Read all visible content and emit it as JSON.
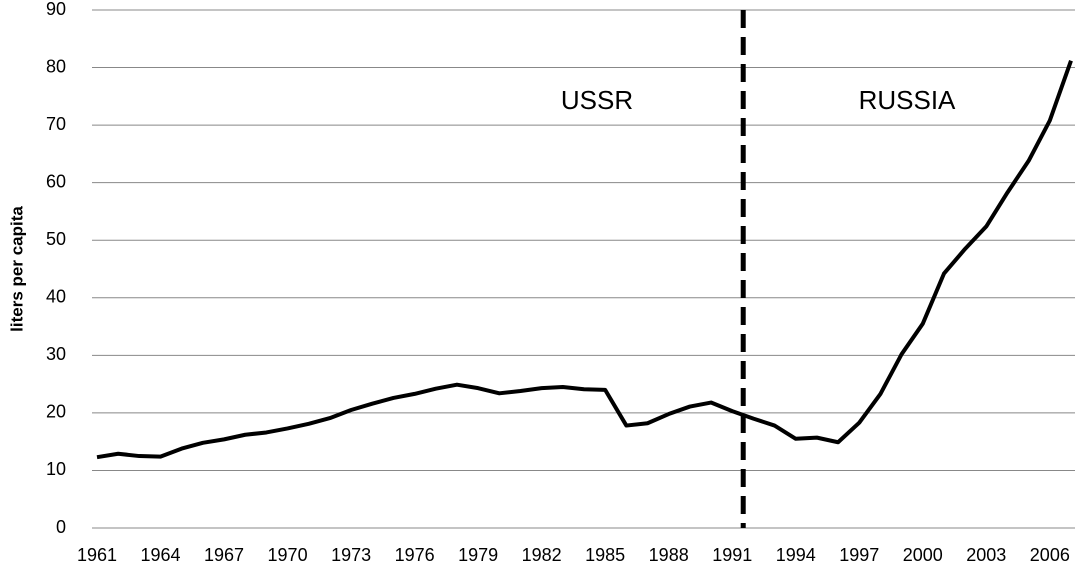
{
  "chart_data": {
    "type": "line",
    "y_label": "liters per capita",
    "categories": [
      "1961",
      null,
      null,
      "1964",
      null,
      null,
      "1967",
      null,
      null,
      "1970",
      null,
      null,
      "1973",
      null,
      null,
      "1976",
      null,
      null,
      "1979",
      null,
      null,
      "1982",
      null,
      null,
      "1985",
      null,
      null,
      "1988",
      null,
      null,
      "1991",
      null,
      null,
      "1994",
      null,
      null,
      "1997",
      null,
      null,
      "2000",
      null,
      null,
      "2003",
      null,
      null,
      "2006",
      null
    ],
    "values": [
      12.3,
      12.9,
      12.5,
      12.4,
      13.8,
      14.8,
      15.4,
      16.2,
      16.6,
      17.3,
      18.1,
      19.1,
      20.5,
      21.6,
      22.6,
      23.3,
      24.2,
      24.9,
      24.3,
      23.4,
      23.8,
      24.3,
      24.5,
      24.1,
      24.0,
      17.8,
      18.2,
      19.8,
      21.1,
      21.8,
      20.3,
      19.0,
      17.8,
      15.5,
      15.7,
      14.9,
      18.3,
      23.3,
      30.2,
      35.5,
      44.2,
      48.5,
      52.4,
      58.3,
      63.8,
      70.8,
      81.2
    ],
    "color": "#000000",
    "annotations": [
      "USSR",
      "RUSSIA"
    ],
    "ylim": [
      0,
      90
    ],
    "yticks": [
      0,
      10,
      20,
      30,
      40,
      50,
      60,
      70,
      80,
      90
    ],
    "grid": true
  }
}
